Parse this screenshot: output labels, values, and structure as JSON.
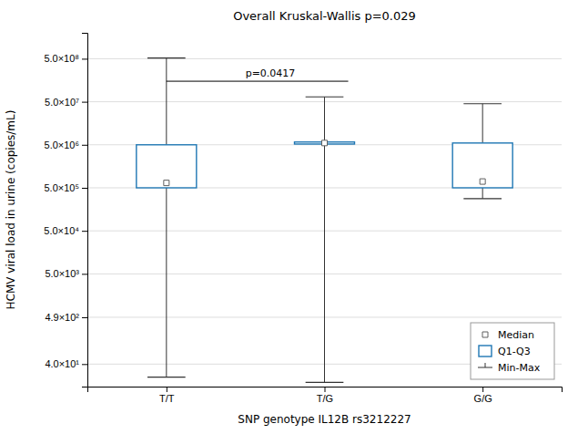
{
  "chart_data": {
    "type": "box",
    "title": "Overall Kruskal-Wallis p=0.029",
    "xlabel": "SNP genotype IL12B rs3212227",
    "ylabel": "HCMV viral load in urine (copies/mL)",
    "categories": [
      "T/T",
      "T/G",
      "G/G"
    ],
    "series": [
      {
        "name": "Median",
        "marker": "square",
        "values": [
          650000.0,
          5500000.0,
          700000.0
        ]
      },
      {
        "name": "Q1-Q3",
        "q1": [
          500000.0,
          5200000.0,
          500000.0
        ],
        "q3": [
          5000000.0,
          5800000.0,
          5500000.0
        ]
      },
      {
        "name": "Min-Max",
        "min": [
          20.0,
          15.0,
          280000.0
        ],
        "max": [
          520000000.0,
          65000000.0,
          45000000.0
        ]
      }
    ],
    "log": "y",
    "ylim": [
      12.0,
      2000000000.0
    ],
    "yticks": [
      {
        "value": 40.0,
        "label": "4.0×10¹"
      },
      {
        "value": 490.0,
        "label": "4.9×10²"
      },
      {
        "value": 5000.0,
        "label": "5.0×10³"
      },
      {
        "value": 50000.0,
        "label": "5.0×10⁴"
      },
      {
        "value": 500000.0,
        "label": "5.0×10⁵"
      },
      {
        "value": 5000000.0,
        "label": "5.0×10⁶"
      },
      {
        "value": 50000000.0,
        "label": "5.0×10⁷"
      },
      {
        "value": 500000000.0,
        "label": "5.0×10⁸"
      }
    ],
    "grid": true,
    "legend": "lower right",
    "annotations": [
      {
        "text": "p=0.0417",
        "y": 150000000.0,
        "from": "T/T",
        "to": "T/G"
      }
    ]
  }
}
